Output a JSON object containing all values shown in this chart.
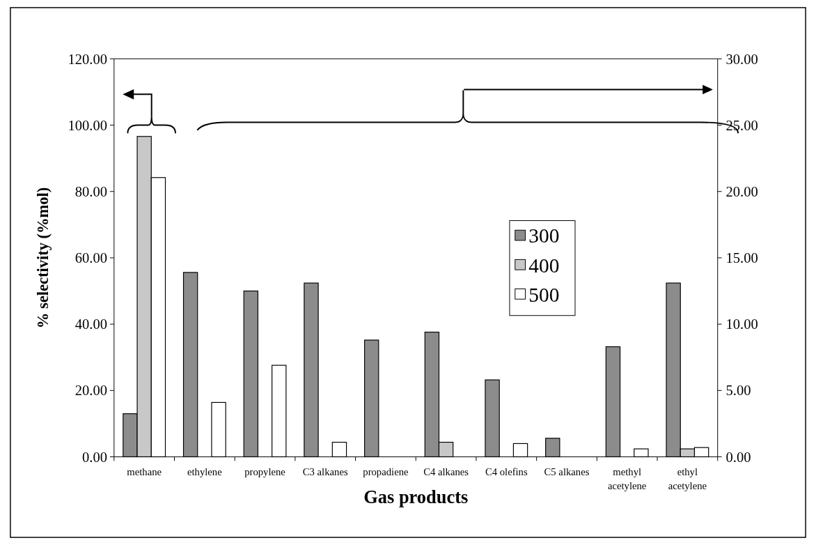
{
  "chart_data": {
    "type": "bar",
    "xlabel": "Gas products",
    "ylabel": "% selectivity (%mol)",
    "categories": [
      "methane",
      "ethylene",
      "propylene",
      "C3 alkanes",
      "propadiene",
      "C4 alkanes",
      "C4 olefins",
      "C5 alkanes",
      "methyl acetylene",
      "ethyl acetylene"
    ],
    "series": [
      {
        "name": "300",
        "color": "#8c8c8c",
        "values": [
          13.0,
          null,
          null,
          null,
          null,
          null,
          null,
          null,
          null,
          null
        ]
      },
      {
        "name": "400",
        "color": "#c8c8c8",
        "values": [
          96.6,
          null,
          null,
          null,
          null,
          null,
          null,
          null,
          null,
          null
        ]
      },
      {
        "name": "500",
        "color": "#ffffff",
        "values": [
          84.2,
          null,
          null,
          null,
          null,
          null,
          null,
          null,
          null,
          null
        ]
      },
      {
        "color": "#8c8c8c",
        "axis": "y2",
        "values": [
          null,
          13.9,
          12.5,
          13.1,
          8.8,
          9.4,
          5.8,
          1.4,
          8.3,
          13.1
        ]
      },
      {
        "color": "#c8c8c8",
        "axis": "y2",
        "values": [
          null,
          null,
          null,
          null,
          null,
          1.1,
          null,
          null,
          null,
          0.6
        ]
      },
      {
        "color": "#ffffff",
        "axis": "y2",
        "values": [
          null,
          4.1,
          6.9,
          1.1,
          null,
          null,
          1.0,
          null,
          0.6,
          0.7
        ]
      }
    ],
    "ylim": [
      0,
      120
    ],
    "yticks": [
      {
        "value": 0,
        "label": "0.00"
      },
      {
        "value": 20,
        "label": "20.00"
      },
      {
        "value": 40,
        "label": "40.00"
      },
      {
        "value": 60,
        "label": "60.00"
      },
      {
        "value": 80,
        "label": "80.00"
      },
      {
        "value": 100,
        "label": "100.00"
      },
      {
        "value": 120,
        "label": "120.00"
      }
    ],
    "y2lim": [
      0,
      30
    ],
    "y2ticks": [
      {
        "value": 0,
        "label": "0.00"
      },
      {
        "value": 5,
        "label": "5.00"
      },
      {
        "value": 10,
        "label": "10.00"
      },
      {
        "value": 15,
        "label": "15.00"
      },
      {
        "value": 20,
        "label": "20.00"
      },
      {
        "value": 25,
        "label": "25.00"
      },
      {
        "value": 30,
        "label": "30.00"
      }
    ],
    "grid": false,
    "legend": "right"
  }
}
